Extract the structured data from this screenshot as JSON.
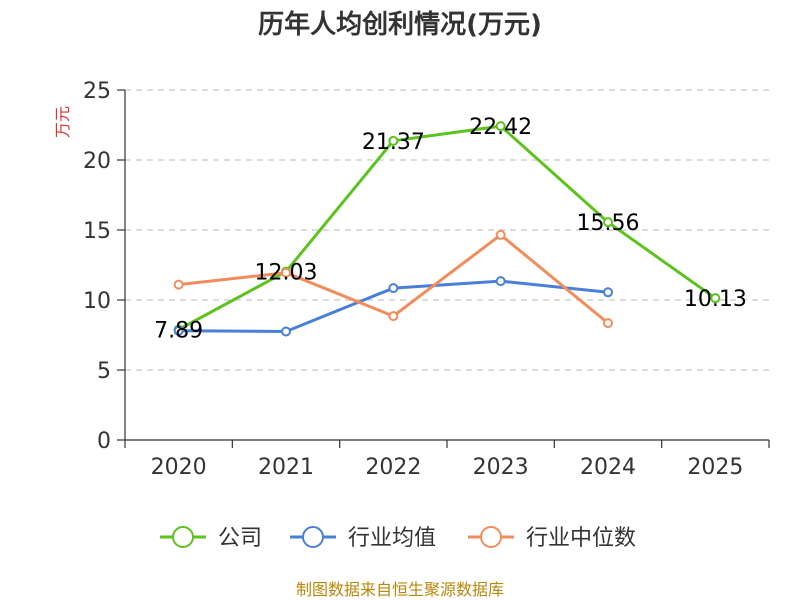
{
  "chart_data": {
    "type": "line",
    "title": "历年人均创利情况(万元)",
    "ylabel": "万元",
    "xlabel": "",
    "categories": [
      "2020",
      "2021",
      "2022",
      "2023",
      "2024",
      "2025"
    ],
    "ylim": [
      0,
      25
    ],
    "yticks": [
      0,
      5,
      10,
      15,
      20,
      25
    ],
    "grid": true,
    "legend_position": "bottom",
    "series": [
      {
        "name": "公司",
        "color": "#5bc21e",
        "values": [
          7.89,
          12.03,
          21.37,
          22.42,
          15.56,
          10.13
        ],
        "show_labels": true
      },
      {
        "name": "行业均值",
        "color": "#4a7fd8",
        "values": [
          7.8,
          7.75,
          10.85,
          11.35,
          10.55,
          null
        ],
        "show_labels": false
      },
      {
        "name": "行业中位数",
        "color": "#f28c5a",
        "values": [
          11.1,
          11.95,
          8.85,
          14.65,
          8.35,
          null
        ],
        "show_labels": false
      }
    ]
  },
  "source_text": "制图数据来自恒生聚源数据库"
}
